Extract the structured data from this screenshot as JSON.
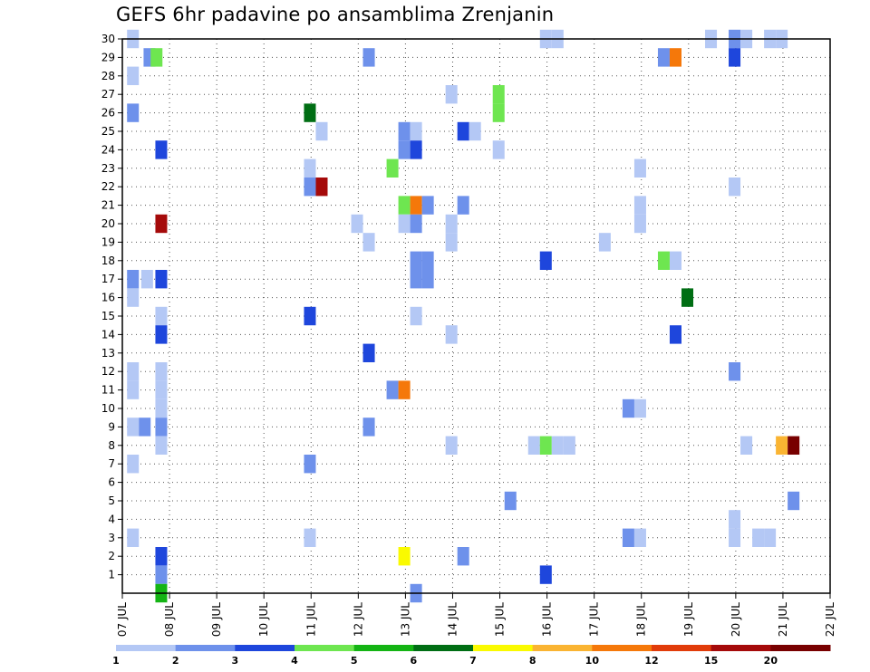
{
  "chart_data": {
    "type": "heatmap",
    "title": "GEFS 6hr padavine po ansamblima Zrenjanin",
    "y_ticks": [
      "1",
      "2",
      "3",
      "4",
      "5",
      "6",
      "7",
      "8",
      "9",
      "10",
      "11",
      "12",
      "13",
      "14",
      "15",
      "16",
      "17",
      "18",
      "19",
      "20",
      "21",
      "22",
      "23",
      "24",
      "25",
      "26",
      "27",
      "28",
      "29",
      "30"
    ],
    "x_ticks": [
      "07 JUL",
      "08 JUL",
      "09 JUL",
      "10 JUL",
      "11 JUL",
      "12 JUL",
      "13 JUL",
      "14 JUL",
      "15 JUL",
      "16 JUL",
      "17 JUL",
      "18 JUL",
      "19 JUL",
      "20 JUL",
      "21 JUL",
      "22 JUL"
    ],
    "x_range_days": [
      0,
      15
    ],
    "y_range": [
      0,
      30
    ],
    "grid": true,
    "color_bins": [
      "#b4c8f5",
      "#6e91eb",
      "#1e46dc",
      "#6ee650",
      "#14b414",
      "#006e14",
      "#fafa00",
      "#fab432",
      "#f5780a",
      "#e13c0a",
      "#a50a0a",
      "#780000"
    ],
    "legend_labels": [
      "1",
      "2",
      "3",
      "4",
      "5",
      "6",
      "7",
      "8",
      "10",
      "12",
      "15",
      "20"
    ],
    "cells": [
      [
        0.1,
        30,
        1
      ],
      [
        0.45,
        29,
        2
      ],
      [
        0.6,
        29,
        4
      ],
      [
        0.1,
        28,
        1
      ],
      [
        0.1,
        26,
        2
      ],
      [
        0.7,
        24,
        3
      ],
      [
        0.7,
        20,
        11
      ],
      [
        0.1,
        17,
        2
      ],
      [
        0.4,
        17,
        1
      ],
      [
        0.7,
        17,
        3
      ],
      [
        0.1,
        16,
        1
      ],
      [
        0.7,
        15,
        1
      ],
      [
        0.7,
        14,
        3
      ],
      [
        0.1,
        12,
        1
      ],
      [
        0.7,
        12,
        1
      ],
      [
        0.1,
        11,
        1
      ],
      [
        0.7,
        11,
        1
      ],
      [
        0.7,
        10,
        1
      ],
      [
        0.1,
        9,
        1
      ],
      [
        0.35,
        9,
        2
      ],
      [
        0.7,
        9,
        2
      ],
      [
        0.7,
        8,
        1
      ],
      [
        0.1,
        7,
        1
      ],
      [
        0.1,
        3,
        1
      ],
      [
        0.7,
        2,
        3
      ],
      [
        0.7,
        1,
        2
      ],
      [
        0.7,
        0,
        5
      ],
      [
        3.85,
        26,
        6
      ],
      [
        3.85,
        23,
        1
      ],
      [
        3.85,
        22,
        2
      ],
      [
        4.1,
        22,
        11
      ],
      [
        4.1,
        25,
        1
      ],
      [
        3.85,
        15,
        3
      ],
      [
        3.85,
        7,
        2
      ],
      [
        3.85,
        3,
        1
      ],
      [
        5.1,
        29,
        2
      ],
      [
        4.85,
        20,
        1
      ],
      [
        5.1,
        19,
        1
      ],
      [
        5.1,
        13,
        3
      ],
      [
        5.1,
        9,
        2
      ],
      [
        5.6,
        23,
        4
      ],
      [
        5.6,
        11,
        2
      ],
      [
        5.85,
        11,
        9
      ],
      [
        5.85,
        25,
        2
      ],
      [
        5.85,
        24,
        2
      ],
      [
        6.1,
        25,
        1
      ],
      [
        6.1,
        24,
        3
      ],
      [
        5.85,
        21,
        4
      ],
      [
        6.1,
        21,
        9
      ],
      [
        6.35,
        21,
        2
      ],
      [
        5.85,
        20,
        1
      ],
      [
        6.1,
        20,
        2
      ],
      [
        6.1,
        18,
        2
      ],
      [
        6.35,
        18,
        2
      ],
      [
        6.1,
        17,
        2
      ],
      [
        6.35,
        17,
        2
      ],
      [
        6.1,
        15,
        1
      ],
      [
        5.85,
        2,
        7
      ],
      [
        6.1,
        0,
        2
      ],
      [
        6.85,
        27,
        1
      ],
      [
        7.1,
        25,
        3
      ],
      [
        7.35,
        25,
        1
      ],
      [
        7.1,
        21,
        2
      ],
      [
        6.85,
        20,
        1
      ],
      [
        6.85,
        19,
        1
      ],
      [
        6.85,
        14,
        1
      ],
      [
        6.85,
        8,
        1
      ],
      [
        7.1,
        2,
        2
      ],
      [
        7.85,
        27,
        4
      ],
      [
        7.85,
        26,
        4
      ],
      [
        7.85,
        24,
        1
      ],
      [
        8.1,
        5,
        2
      ],
      [
        8.6,
        8,
        1
      ],
      [
        8.85,
        8,
        4
      ],
      [
        9.1,
        8,
        1
      ],
      [
        9.35,
        8,
        1
      ],
      [
        8.85,
        18,
        3
      ],
      [
        8.85,
        1,
        3
      ],
      [
        8.85,
        30,
        1
      ],
      [
        9.1,
        30,
        1
      ],
      [
        10.1,
        19,
        1
      ],
      [
        10.85,
        23,
        1
      ],
      [
        10.85,
        21,
        1
      ],
      [
        10.85,
        20,
        1
      ],
      [
        10.85,
        10,
        1
      ],
      [
        10.6,
        10,
        2
      ],
      [
        10.6,
        3,
        2
      ],
      [
        10.85,
        3,
        1
      ],
      [
        11.35,
        29,
        2
      ],
      [
        11.6,
        29,
        9
      ],
      [
        11.35,
        18,
        4
      ],
      [
        11.6,
        18,
        1
      ],
      [
        11.6,
        14,
        3
      ],
      [
        11.85,
        16,
        6
      ],
      [
        12.35,
        30,
        1
      ],
      [
        12.85,
        30,
        2
      ],
      [
        13.1,
        30,
        1
      ],
      [
        12.85,
        29,
        3
      ],
      [
        12.85,
        22,
        1
      ],
      [
        12.85,
        12,
        2
      ],
      [
        12.85,
        4,
        1
      ],
      [
        12.85,
        3,
        1
      ],
      [
        13.1,
        8,
        1
      ],
      [
        13.35,
        3,
        1
      ],
      [
        13.6,
        3,
        1
      ],
      [
        13.6,
        30,
        1
      ],
      [
        13.85,
        30,
        1
      ],
      [
        13.85,
        8,
        8
      ],
      [
        14.1,
        8,
        12
      ],
      [
        14.1,
        5,
        2
      ]
    ]
  }
}
